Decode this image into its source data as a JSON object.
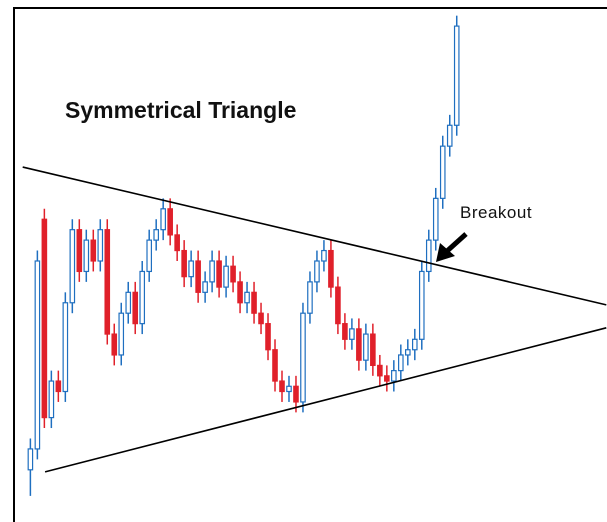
{
  "chart_data": {
    "type": "candlestick",
    "title": "Symmetrical Triangle",
    "annotation": "Breakout",
    "up_color": "#1f6fc0",
    "down_color": "#e0202a",
    "xlim": [
      -1.2,
      82.5
    ],
    "ylim": [
      0,
      100
    ],
    "open": [
      10,
      14,
      58,
      20,
      27,
      25,
      42,
      56,
      48,
      54,
      50,
      56,
      36,
      32,
      40,
      44,
      38,
      48,
      54,
      56,
      60,
      55,
      52,
      47,
      50,
      44,
      46,
      50,
      45,
      49,
      46,
      42,
      44,
      40,
      38,
      33,
      27,
      25,
      26,
      23,
      40,
      46,
      50,
      52,
      45,
      38,
      35,
      37,
      31,
      36,
      30,
      28,
      27,
      29,
      32,
      33,
      35,
      48,
      54,
      62,
      72,
      76
    ],
    "high": [
      16,
      52,
      60,
      29,
      29,
      44,
      58,
      58,
      56,
      56,
      58,
      58,
      38,
      42,
      46,
      46,
      50,
      56,
      58,
      62,
      62,
      57,
      54,
      52,
      52,
      48,
      52,
      52,
      51,
      51,
      48,
      46,
      46,
      42,
      40,
      35,
      29,
      28,
      28,
      42,
      48,
      52,
      54,
      54,
      47,
      40,
      39,
      39,
      38,
      38,
      32,
      30,
      31,
      34,
      35,
      37,
      50,
      56,
      64,
      74,
      78,
      97
    ],
    "low": [
      5,
      12,
      18,
      18,
      23,
      23,
      40,
      46,
      46,
      48,
      48,
      34,
      30,
      30,
      38,
      36,
      36,
      46,
      52,
      54,
      53,
      50,
      45,
      45,
      42,
      42,
      44,
      43,
      43,
      44,
      40,
      40,
      38,
      36,
      31,
      25,
      23,
      23,
      21,
      21,
      38,
      44,
      48,
      43,
      36,
      33,
      33,
      29,
      29,
      28,
      26,
      25,
      25,
      27,
      30,
      31,
      33,
      46,
      52,
      60,
      70,
      74
    ],
    "close": [
      14,
      50,
      20,
      27,
      25,
      42,
      56,
      48,
      54,
      50,
      56,
      36,
      32,
      40,
      44,
      38,
      48,
      54,
      56,
      60,
      55,
      52,
      47,
      50,
      44,
      46,
      50,
      45,
      49,
      46,
      42,
      44,
      40,
      38,
      33,
      27,
      25,
      26,
      23,
      40,
      46,
      50,
      52,
      45,
      38,
      35,
      37,
      31,
      36,
      30,
      28,
      27,
      29,
      32,
      33,
      35,
      48,
      54,
      62,
      72,
      76,
      95
    ],
    "trendlines": [
      {
        "x": [
          -1.1,
          82.4
        ],
        "y": [
          68,
          41.6
        ]
      },
      {
        "x": [
          2.1,
          82.4
        ],
        "y": [
          9.6,
          37.2
        ]
      }
    ]
  }
}
